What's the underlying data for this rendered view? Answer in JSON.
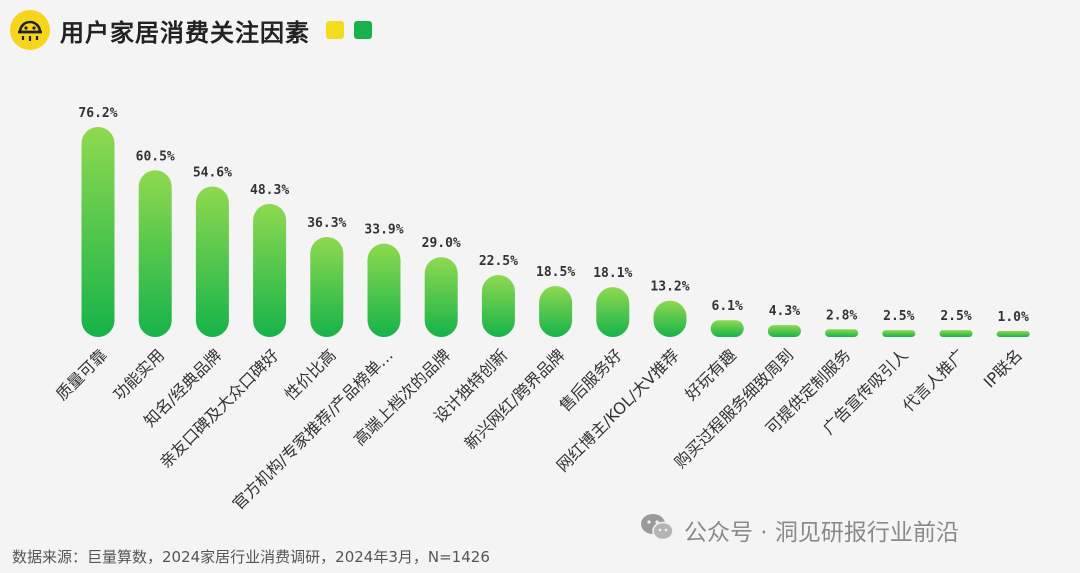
{
  "header": {
    "title": "用户家居消费关注因素",
    "logo_icon": "smiling-sun-logo-icon"
  },
  "colors": {
    "bar_top": "#8fd94f",
    "bar_bottom": "#16b34a",
    "accent_yellow": "#f2dc1e",
    "accent_green": "#17b24a"
  },
  "chart_data": {
    "type": "bar",
    "title": "用户家居消费关注因素",
    "categories": [
      "质量可靠",
      "功能实用",
      "知名/经典品牌",
      "亲友口碑及大众口碑好",
      "性价比高",
      "官方机构/专家推荐/产品榜单…",
      "高端上档次的品牌",
      "设计独特创新",
      "新兴网红/跨界品牌",
      "售后服务好",
      "网红博主/KOL/大V推荐",
      "好玩有趣",
      "购买过程服务细致周到",
      "可提供定制服务",
      "广告宣传吸引人",
      "代言人推广",
      "IP联名"
    ],
    "values": [
      76.2,
      60.5,
      54.6,
      48.3,
      36.3,
      33.9,
      29.0,
      22.5,
      18.5,
      18.1,
      13.2,
      6.1,
      4.3,
      2.8,
      2.5,
      2.5,
      1.0
    ],
    "value_labels": [
      "76.2%",
      "60.5%",
      "54.6%",
      "48.3%",
      "36.3%",
      "33.9%",
      "29.0%",
      "22.5%",
      "18.5%",
      "18.1%",
      "13.2%",
      "6.1%",
      "4.3%",
      "2.8%",
      "2.5%",
      "2.5%",
      "1.0%"
    ],
    "unit": "%",
    "grid": false,
    "legend": "none"
  },
  "footnote": "数据来源：巨量算数，2024家居行业消费调研，2024年3月，N=1426",
  "watermark": {
    "icon": "wechat-icon",
    "text": "公众号 · 洞见研报行业前沿"
  }
}
